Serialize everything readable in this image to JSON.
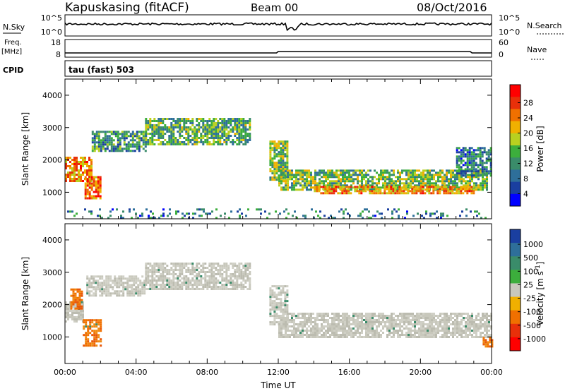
{
  "header": {
    "station": "Kapuskasing (fitACF)",
    "beam": "Beam 00",
    "date": "08/Oct/2016"
  },
  "params": {
    "nsky_label": "N.Sky",
    "nsky_top": "10^5",
    "nsky_bottom": "10^0",
    "nsearch_label": "N.Search",
    "nsearch_top": "10^5",
    "nsearch_bottom": "10^0",
    "freq_label": "Freq.",
    "freq_unit": "[MHz]",
    "freq_top": "18",
    "freq_bottom": "8",
    "nave_label": "Nave",
    "nave_top": "60",
    "nave_bottom": "0",
    "cpid_label": "CPID",
    "cpid_value": "tau (fast) 503"
  },
  "chart_data": [
    {
      "type": "heatmap",
      "name": "power",
      "ylabel": "Slant Range [km]",
      "ylim": [
        180,
        4500
      ],
      "yticks": [
        "4000",
        "3000",
        "2000",
        "1000"
      ],
      "xlim_hours": [
        0,
        24
      ],
      "colorbar": {
        "label": "Power [dB]",
        "ticks": [
          "28",
          "24",
          "20",
          "16",
          "12",
          "8",
          "4"
        ],
        "colors": [
          "#0000ff",
          "#1a3fa0",
          "#2e6f9a",
          "#3a8c6a",
          "#3cae3c",
          "#b8d020",
          "#f0b000",
          "#f07000",
          "#e8300a",
          "#ff0000"
        ]
      },
      "echo_bands": [
        {
          "t0": 0.0,
          "t1": 1.5,
          "r0": 1350,
          "r1": 2100,
          "level": 22
        },
        {
          "t0": 1.1,
          "t1": 2.0,
          "r0": 800,
          "r1": 1500,
          "level": 24
        },
        {
          "t0": 1.5,
          "t1": 4.5,
          "r0": 2300,
          "r1": 2900,
          "level": 10
        },
        {
          "t0": 4.5,
          "t1": 10.4,
          "r0": 2500,
          "r1": 3300,
          "level": 12
        },
        {
          "t0": 11.5,
          "t1": 12.5,
          "r0": 1400,
          "r1": 2600,
          "level": 14
        },
        {
          "t0": 12.0,
          "t1": 23.8,
          "r0": 1100,
          "r1": 1700,
          "level": 14
        },
        {
          "t0": 14.0,
          "t1": 23.0,
          "r0": 950,
          "r1": 1200,
          "level": 22
        },
        {
          "t0": 22.0,
          "t1": 24.0,
          "r0": 1500,
          "r1": 2400,
          "level": 8
        },
        {
          "t0": 0.0,
          "t1": 24.0,
          "r0": 180,
          "r1": 500,
          "level": 8
        }
      ]
    },
    {
      "type": "heatmap",
      "name": "velocity",
      "ylabel": "Slant Range [km]",
      "ylim": [
        180,
        4500
      ],
      "yticks": [
        "4000",
        "3000",
        "2000",
        "1000"
      ],
      "xlim_hours": [
        0,
        24
      ],
      "xticks": [
        "00:00",
        "04:00",
        "08:00",
        "12:00",
        "16:00",
        "20:00",
        "00:00"
      ],
      "xlabel": "Time UT",
      "colorbar": {
        "label": "Velocity [m s",
        "label_sup": "-1",
        "label_end": "]",
        "ticks": [
          "1000",
          "500",
          "100",
          "25",
          "-25",
          "-100",
          "-500",
          "-1000"
        ],
        "colors": [
          "#1a3fa0",
          "#2e6f9a",
          "#3a8c6a",
          "#3cae3c",
          "#c8c8bc",
          "#f0b000",
          "#f07000",
          "#e8300a",
          "#ff0000"
        ]
      },
      "echo_bands": [
        {
          "t0": 0.0,
          "t1": 1.0,
          "r0": 1500,
          "r1": 2100,
          "level": "grey"
        },
        {
          "t0": 0.3,
          "t1": 1.0,
          "r0": 1900,
          "r1": 2500,
          "level": "orange"
        },
        {
          "t0": 1.0,
          "t1": 2.0,
          "r0": 700,
          "r1": 1550,
          "level": "orange"
        },
        {
          "t0": 1.2,
          "t1": 4.5,
          "r0": 2300,
          "r1": 2900,
          "level": "grey"
        },
        {
          "t0": 4.5,
          "t1": 10.4,
          "r0": 2500,
          "r1": 3300,
          "level": "grey"
        },
        {
          "t0": 11.5,
          "t1": 12.5,
          "r0": 1400,
          "r1": 2600,
          "level": "grey"
        },
        {
          "t0": 12.0,
          "t1": 24.0,
          "r0": 1000,
          "r1": 1750,
          "level": "grey"
        },
        {
          "t0": 23.5,
          "t1": 24.0,
          "r0": 700,
          "r1": 1000,
          "level": "orange"
        }
      ]
    }
  ]
}
